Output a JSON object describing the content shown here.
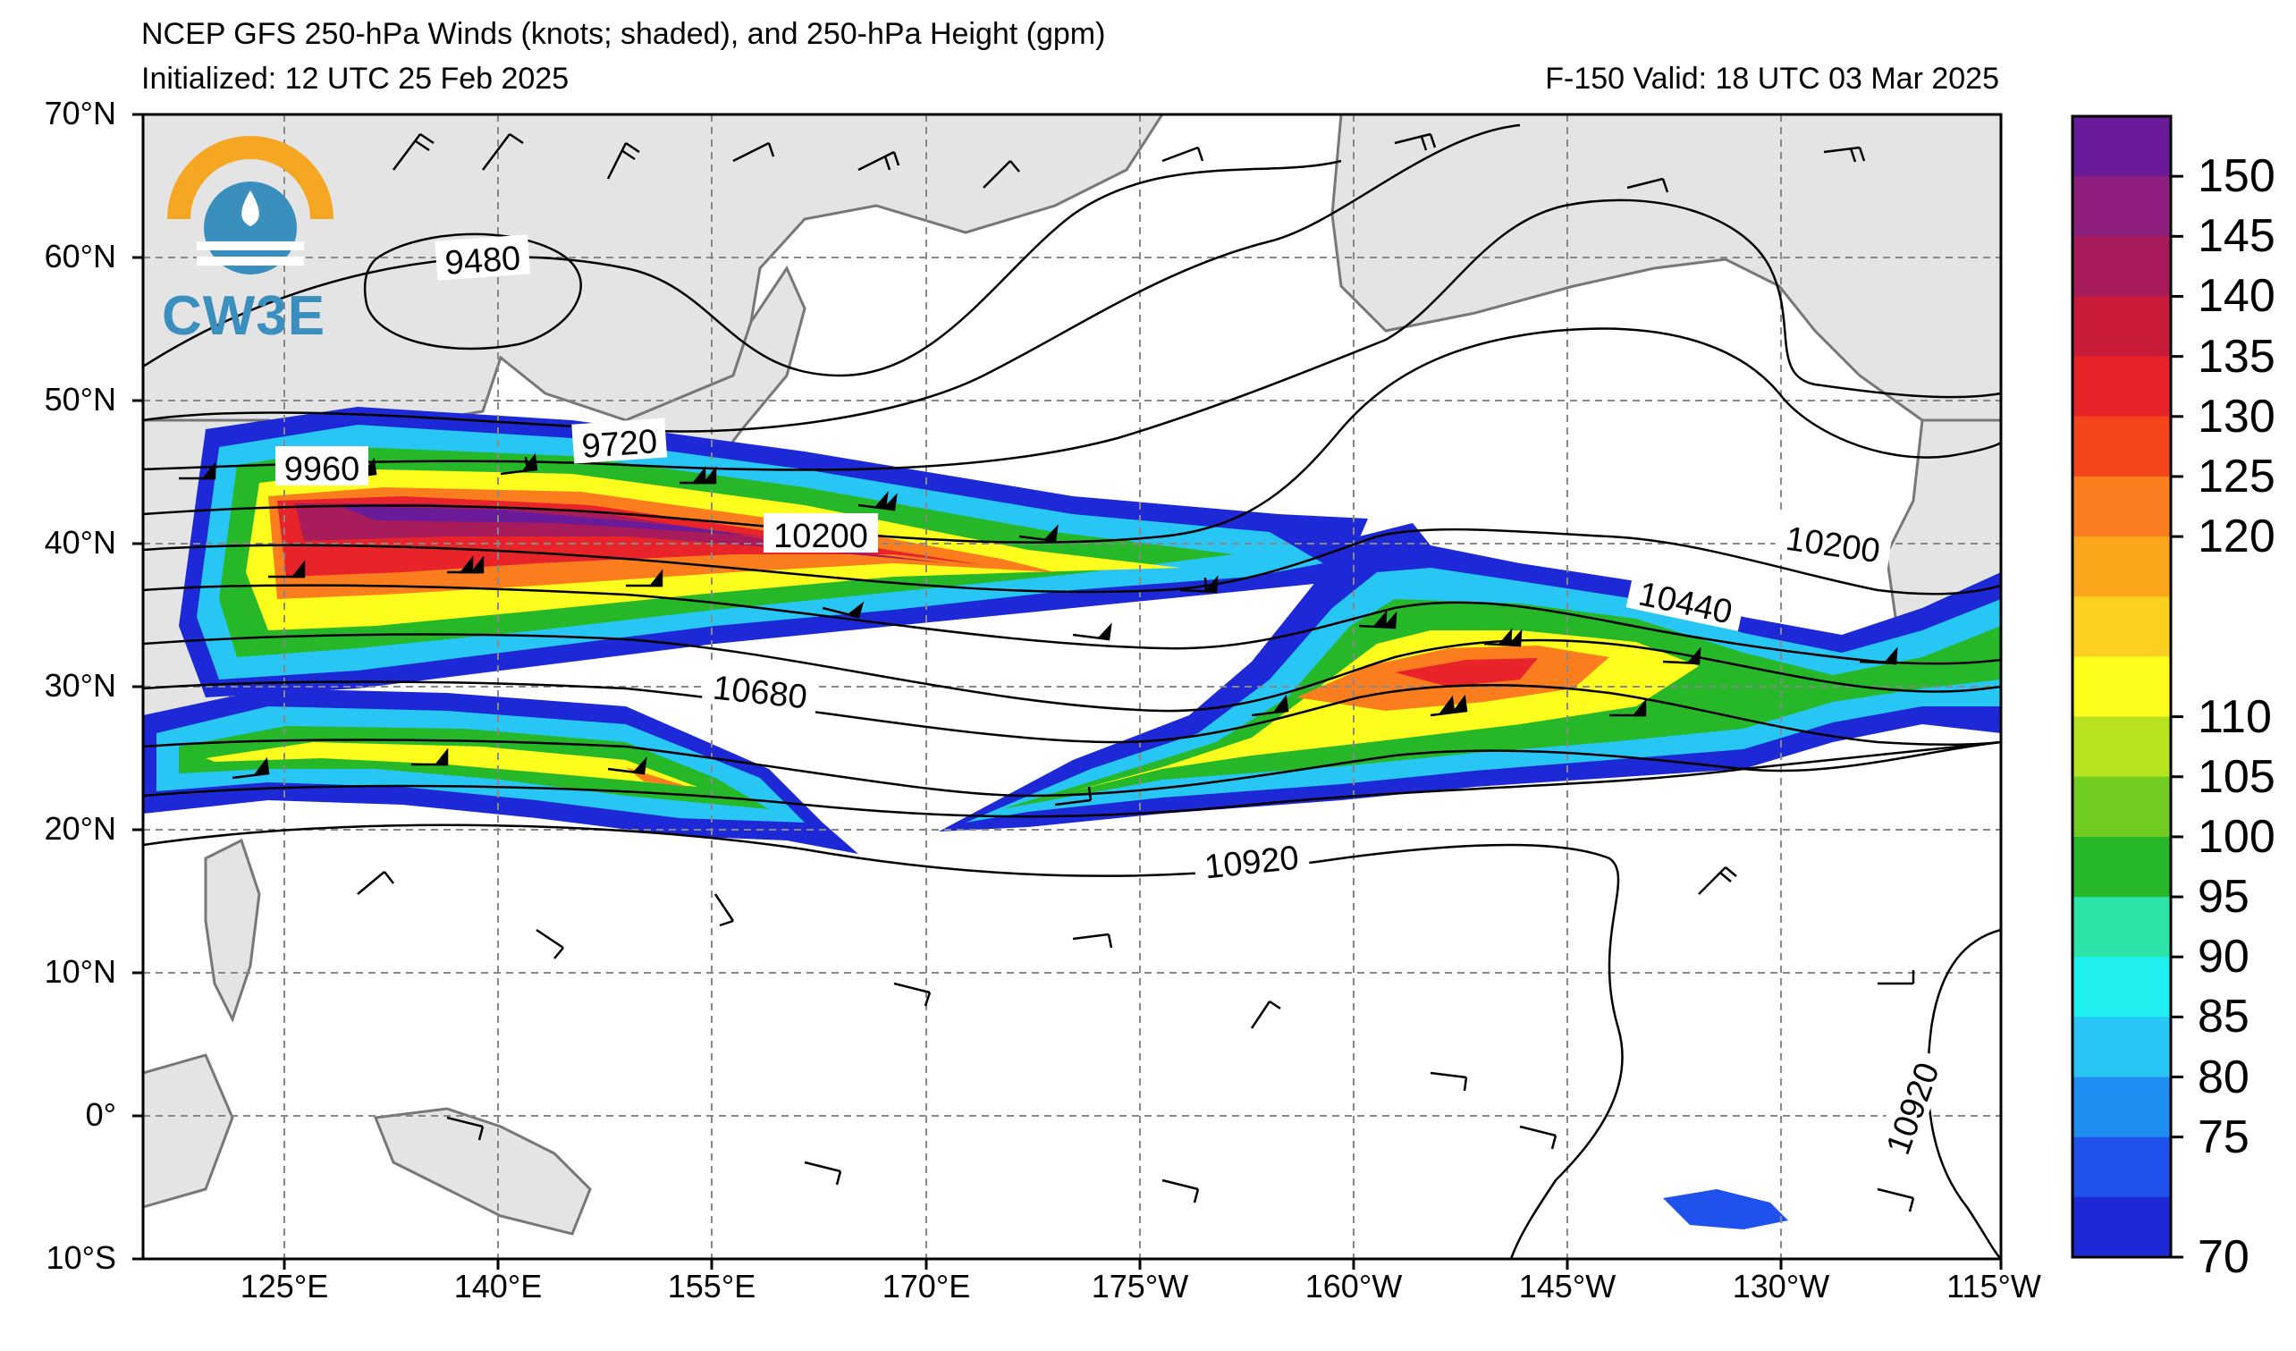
{
  "title_line1": "NCEP GFS 250-hPa Winds (knots; shaded), and 250-hPa Height (gpm)",
  "title_initialized": "Initialized: 12 UTC 25 Feb 2025",
  "title_valid": "F-150  Valid: 18 UTC 03 Mar 2025",
  "logo_text": "CW3E",
  "lat_labels": [
    "70°N",
    "60°N",
    "50°N",
    "40°N",
    "30°N",
    "20°N",
    "10°N",
    "0°",
    "10°S"
  ],
  "lon_labels": [
    "125°E",
    "140°E",
    "155°E",
    "170°E",
    "175°W",
    "160°W",
    "145°W",
    "130°W",
    "115°W"
  ],
  "contour_labels": [
    "9480",
    "9720",
    "9960",
    "10200",
    "10200",
    "10440",
    "10680",
    "10920",
    "10920"
  ],
  "colorbar": {
    "ticks": [
      "150",
      "145",
      "140",
      "135",
      "130",
      "125",
      "120",
      "110",
      "105",
      "100",
      "95",
      "90",
      "85",
      "80",
      "75",
      "70"
    ],
    "colors": [
      "#6a1b9a",
      "#8e1f7f",
      "#a81c5c",
      "#c81b3a",
      "#e8232a",
      "#f7451b",
      "#fb7d1d",
      "#fca61c",
      "#fdcf1f",
      "#fefe1e",
      "#b6e21e",
      "#70cc20",
      "#27b829",
      "#2be3a6",
      "#1ef0f0",
      "#27c6f4",
      "#1e8ef3",
      "#1f52ec",
      "#1d28d6"
    ]
  },
  "colors": {
    "land": "#e4e4e4",
    "coast": "#777777",
    "ocean": "#ffffff",
    "grid": "#888888"
  }
}
